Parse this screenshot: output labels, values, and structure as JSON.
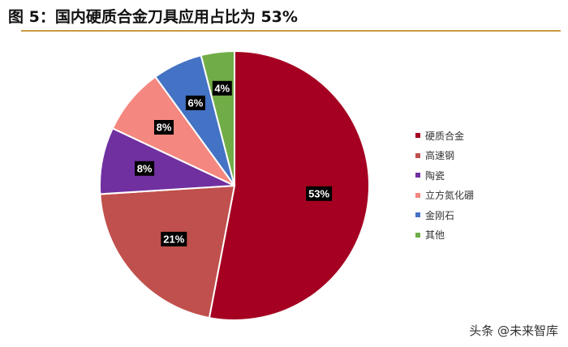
{
  "page": {
    "title": "图 5：国内硬质合金刀具应用占比为 53%",
    "watermark": "头条 @未来智库"
  },
  "chart_data": {
    "type": "pie",
    "title": "图 5：国内硬质合金刀具应用占比为 53%",
    "start": "12 o'clock",
    "direction": "clockwise",
    "labels": [
      "硬质合金",
      "高速钢",
      "陶瓷",
      "立方氮化硼",
      "金刚石",
      "其他"
    ],
    "values": [
      53,
      21,
      8,
      8,
      6,
      4
    ],
    "value_labels": [
      "53%",
      "21%",
      "8%",
      "8%",
      "6%",
      "4%"
    ],
    "colors": [
      "#a50021",
      "#c0504d",
      "#7030a0",
      "#f4877f",
      "#4472c4",
      "#70ad47"
    ],
    "legend_position": "right"
  }
}
